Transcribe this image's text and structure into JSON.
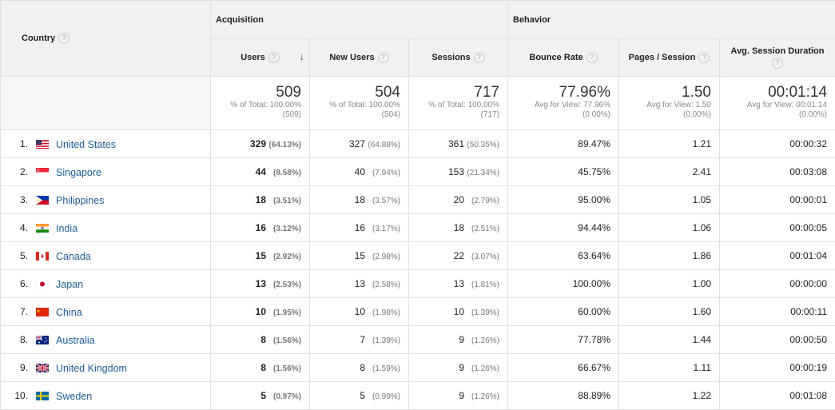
{
  "headers": {
    "country": "Country",
    "acquisition": "Acquisition",
    "behavior": "Behavior",
    "users": "Users",
    "new_users": "New Users",
    "sessions": "Sessions",
    "bounce_rate": "Bounce Rate",
    "pages_session": "Pages / Session",
    "avg_duration": "Avg. Session Duration",
    "help_glyph": "?",
    "sort_glyph": "↓"
  },
  "totals": {
    "users": {
      "value": "509",
      "l1": "% of Total: 100.00%",
      "l2": "(509)"
    },
    "new_users": {
      "value": "504",
      "l1": "% of Total: 100.00%",
      "l2": "(504)"
    },
    "sessions": {
      "value": "717",
      "l1": "% of Total: 100.00%",
      "l2": "(717)"
    },
    "bounce_rate": {
      "value": "77.96%",
      "l1": "Avg for View: 77.96%",
      "l2": "(0.00%)"
    },
    "pages_session": {
      "value": "1.50",
      "l1": "Avg for View: 1.50",
      "l2": "(0.00%)"
    },
    "avg_duration": {
      "value": "00:01:14",
      "l1": "Avg for View: 00:01:14",
      "l2": "(0.00%)"
    }
  },
  "rows": [
    {
      "rank": "1.",
      "country": "United States",
      "flag": "us",
      "users": "329",
      "users_pct": "(64.13%)",
      "new_users": "327",
      "new_users_pct": "(64.88%)",
      "sessions": "361",
      "sessions_pct": "(50.35%)",
      "bounce": "89.47%",
      "pages": "1.21",
      "duration": "00:00:32"
    },
    {
      "rank": "2.",
      "country": "Singapore",
      "flag": "sg",
      "users": "44",
      "users_pct": "(8.58%)",
      "new_users": "40",
      "new_users_pct": "(7.94%)",
      "sessions": "153",
      "sessions_pct": "(21.34%)",
      "bounce": "45.75%",
      "pages": "2.41",
      "duration": "00:03:08"
    },
    {
      "rank": "3.",
      "country": "Philippines",
      "flag": "ph",
      "users": "18",
      "users_pct": "(3.51%)",
      "new_users": "18",
      "new_users_pct": "(3.57%)",
      "sessions": "20",
      "sessions_pct": "(2.79%)",
      "bounce": "95.00%",
      "pages": "1.05",
      "duration": "00:00:01"
    },
    {
      "rank": "4.",
      "country": "India",
      "flag": "in",
      "users": "16",
      "users_pct": "(3.12%)",
      "new_users": "16",
      "new_users_pct": "(3.17%)",
      "sessions": "18",
      "sessions_pct": "(2.51%)",
      "bounce": "94.44%",
      "pages": "1.06",
      "duration": "00:00:05"
    },
    {
      "rank": "5.",
      "country": "Canada",
      "flag": "ca",
      "users": "15",
      "users_pct": "(2.92%)",
      "new_users": "15",
      "new_users_pct": "(2.98%)",
      "sessions": "22",
      "sessions_pct": "(3.07%)",
      "bounce": "63.64%",
      "pages": "1.86",
      "duration": "00:01:04"
    },
    {
      "rank": "6.",
      "country": "Japan",
      "flag": "jp",
      "users": "13",
      "users_pct": "(2.53%)",
      "new_users": "13",
      "new_users_pct": "(2.58%)",
      "sessions": "13",
      "sessions_pct": "(1.81%)",
      "bounce": "100.00%",
      "pages": "1.00",
      "duration": "00:00:00"
    },
    {
      "rank": "7.",
      "country": "China",
      "flag": "cn",
      "users": "10",
      "users_pct": "(1.95%)",
      "new_users": "10",
      "new_users_pct": "(1.98%)",
      "sessions": "10",
      "sessions_pct": "(1.39%)",
      "bounce": "60.00%",
      "pages": "1.60",
      "duration": "00:00:11"
    },
    {
      "rank": "8.",
      "country": "Australia",
      "flag": "au",
      "users": "8",
      "users_pct": "(1.56%)",
      "new_users": "7",
      "new_users_pct": "(1.39%)",
      "sessions": "9",
      "sessions_pct": "(1.26%)",
      "bounce": "77.78%",
      "pages": "1.44",
      "duration": "00:00:50"
    },
    {
      "rank": "9.",
      "country": "United Kingdom",
      "flag": "gb",
      "users": "8",
      "users_pct": "(1.56%)",
      "new_users": "8",
      "new_users_pct": "(1.59%)",
      "sessions": "9",
      "sessions_pct": "(1.26%)",
      "bounce": "66.67%",
      "pages": "1.11",
      "duration": "00:00:19"
    },
    {
      "rank": "10.",
      "country": "Sweden",
      "flag": "se",
      "users": "5",
      "users_pct": "(0.97%)",
      "new_users": "5",
      "new_users_pct": "(0.99%)",
      "sessions": "9",
      "sessions_pct": "(1.26%)",
      "bounce": "88.89%",
      "pages": "1.22",
      "duration": "00:01:08"
    }
  ],
  "colors": {
    "link": "#1e5d99",
    "header_bg": "#f1f1f1",
    "border": "#e0e0e0"
  }
}
